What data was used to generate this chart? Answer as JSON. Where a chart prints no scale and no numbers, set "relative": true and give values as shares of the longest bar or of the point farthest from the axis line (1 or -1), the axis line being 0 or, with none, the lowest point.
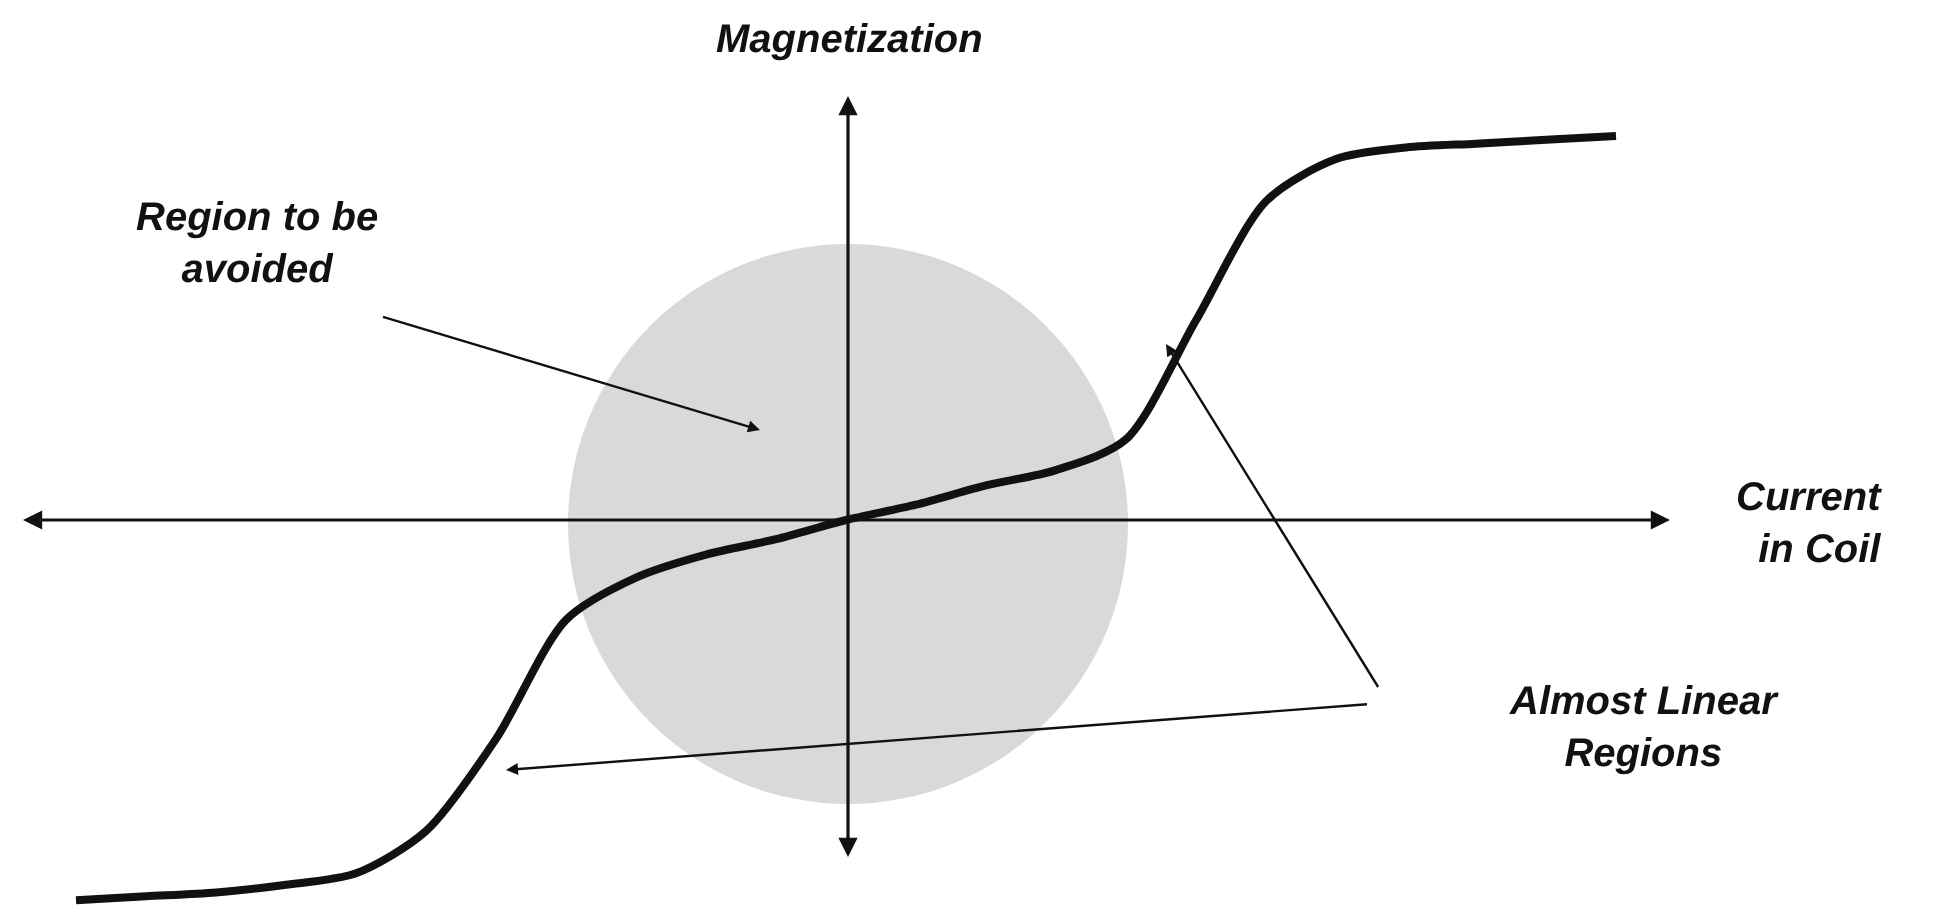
{
  "chart_data": {
    "type": "line",
    "relative": true,
    "xlabel": "Current in Coil",
    "ylabel": "Magnetization",
    "annotations": [
      "Region to be avoided",
      "Almost Linear Regions"
    ],
    "categories": [
      null,
      null,
      null,
      null,
      null,
      null,
      null,
      null,
      null,
      null,
      null,
      null,
      null,
      null,
      null,
      null,
      null,
      null,
      null,
      null,
      null,
      null,
      null
    ],
    "series": [
      {
        "color": "#111111",
        "values": [
          -0.99,
          -0.98,
          -0.97,
          -0.95,
          -0.92,
          -0.81,
          -0.57,
          -0.26,
          -0.15,
          -0.09,
          -0.05,
          0,
          0.04,
          0.09,
          0.13,
          0.21,
          0.52,
          0.83,
          0.94,
          0.97,
          0.98,
          0.99,
          1
        ]
      }
    ]
  }
}
